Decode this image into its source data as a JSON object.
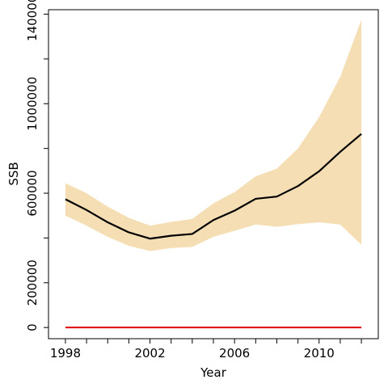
{
  "chart_data": {
    "type": "line",
    "title": "",
    "xlabel": "Year",
    "ylabel": "SSB",
    "xlim": [
      1997.2,
      2012.8
    ],
    "ylim": [
      -50000,
      1420000
    ],
    "x_ticks": [
      1998,
      2002,
      2006,
      2010
    ],
    "x_minor_ticks": [
      1998,
      1999,
      2000,
      2001,
      2002,
      2003,
      2004,
      2005,
      2006,
      2007,
      2008,
      2009,
      2010,
      2011,
      2012
    ],
    "y_ticks": [
      0,
      200000,
      400000,
      600000,
      800000,
      1000000,
      1200000,
      1400000
    ],
    "y_tick_labels": [
      "0",
      "200000",
      "",
      "600000",
      "",
      "1000000",
      "",
      "1400000"
    ],
    "grid": false,
    "x": [
      1998,
      1999,
      2000,
      2001,
      2002,
      2003,
      2004,
      2005,
      2006,
      2007,
      2008,
      2009,
      2010,
      2011,
      2012
    ],
    "series": [
      {
        "values": [
          573000,
          525000,
          470000,
          425000,
          397000,
          410000,
          418000,
          480000,
          522000,
          575000,
          585000,
          632000,
          698000,
          785000,
          865000
        ],
        "color": "#000000"
      }
    ],
    "band": {
      "lower": [
        500000,
        455000,
        405000,
        365000,
        342000,
        355000,
        360000,
        405000,
        432000,
        460000,
        450000,
        462000,
        470000,
        460000,
        370000
      ],
      "upper": [
        645000,
        600000,
        540000,
        490000,
        455000,
        472000,
        485000,
        555000,
        605000,
        675000,
        710000,
        800000,
        940000,
        1120000,
        1375000
      ],
      "color": "#f5deb3"
    },
    "reference_line": {
      "y": 0,
      "color": "#e00000"
    }
  }
}
